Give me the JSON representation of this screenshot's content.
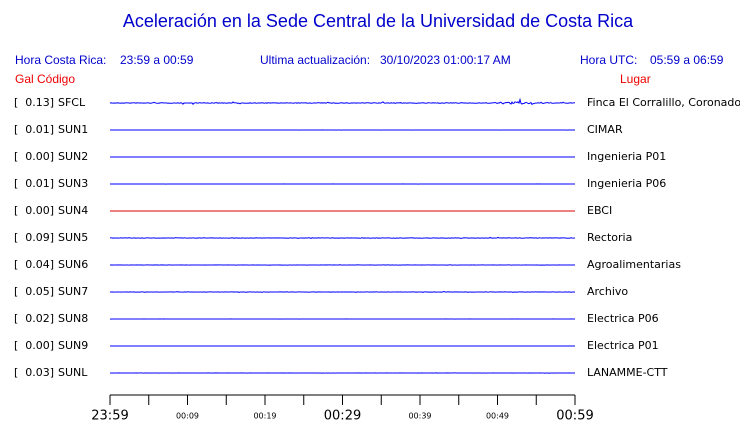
{
  "header": {
    "title": "Aceleración en la Sede Central de la Universidad de Costa Rica",
    "local_label": "Hora Costa Rica:",
    "local_range": "23:59 a 00:59",
    "update_label": "Ultima actualización:",
    "update_value": "30/10/2023 01:00:17 AM",
    "utc_label": "Hora UTC:",
    "utc_range": "05:59 a 06:59",
    "gal_label": "Gal",
    "code_label": "Código",
    "place_label": "Lugar"
  },
  "stations": [
    {
      "gal": "[  0.13]",
      "code": "SFCL",
      "place": "Finca El Corralillo, Coronado",
      "color": "#0000ff"
    },
    {
      "gal": "[  0.01]",
      "code": "SUN1",
      "place": "CIMAR",
      "color": "#0000ff"
    },
    {
      "gal": "[  0.00]",
      "code": "SUN2",
      "place": "Ingenieria P01",
      "color": "#0000ff"
    },
    {
      "gal": "[  0.01]",
      "code": "SUN3",
      "place": "Ingenieria P06",
      "color": "#0000ff"
    },
    {
      "gal": "[  0.00]",
      "code": "SUN4",
      "place": "EBCI",
      "color": "#dd0000"
    },
    {
      "gal": "[  0.09]",
      "code": "SUN5",
      "place": "Rectoria",
      "color": "#0000ff"
    },
    {
      "gal": "[  0.04]",
      "code": "SUN6",
      "place": "Agroalimentarias",
      "color": "#0000ff"
    },
    {
      "gal": "[  0.05]",
      "code": "SUN7",
      "place": "Archivo",
      "color": "#0000ff"
    },
    {
      "gal": "[  0.02]",
      "code": "SUN8",
      "place": "Electrica P06",
      "color": "#0000ff"
    },
    {
      "gal": "[  0.00]",
      "code": "SUN9",
      "place": "Electrica P01",
      "color": "#0000ff"
    },
    {
      "gal": "[  0.03]",
      "code": "SUNL",
      "place": "LANAMME-CTT",
      "color": "#0000ff"
    }
  ],
  "time_axis": [
    {
      "label": "23:59",
      "major": true
    },
    {
      "label": "00:09",
      "major": false
    },
    {
      "label": "00:19",
      "major": false
    },
    {
      "label": "00:29",
      "major": true
    },
    {
      "label": "00:39",
      "major": false
    },
    {
      "label": "00:49",
      "major": false
    },
    {
      "label": "00:59",
      "major": true
    }
  ]
}
